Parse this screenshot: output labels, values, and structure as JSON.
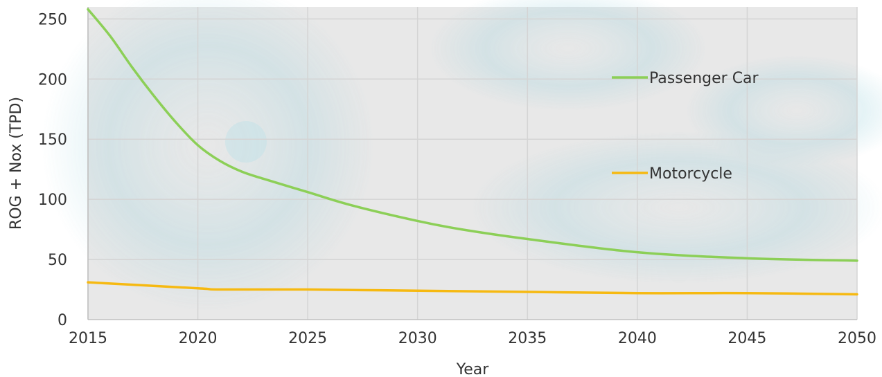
{
  "chart_data": {
    "type": "line",
    "xlabel": "Year",
    "ylabel": "ROG + Nox (TPD)",
    "xlim": [
      2015,
      2050
    ],
    "ylim": [
      0,
      260
    ],
    "x_ticks": [
      "2015",
      "2020",
      "2025",
      "2030",
      "2035",
      "2040",
      "2045",
      "2050"
    ],
    "y_ticks": [
      "0",
      "50",
      "100",
      "150",
      "200",
      "250"
    ],
    "grid": true,
    "series": [
      {
        "name": "Passenger Car",
        "color": "#8ccf57",
        "x": [
          2015,
          2016,
          2017,
          2018,
          2019,
          2020,
          2021,
          2022,
          2023,
          2025,
          2027,
          2030,
          2032,
          2035,
          2040,
          2045,
          2050
        ],
        "y": [
          258,
          236,
          210,
          186,
          164,
          145,
          132,
          123,
          117,
          106,
          95,
          82,
          75,
          67,
          56,
          51,
          49
        ]
      },
      {
        "name": "Motorcycle",
        "color": "#f6b911",
        "x": [
          2015,
          2020,
          2021,
          2025,
          2030,
          2035,
          2040,
          2045,
          2050
        ],
        "y": [
          31,
          26,
          25,
          25,
          24,
          23,
          22,
          22,
          21
        ]
      }
    ]
  }
}
